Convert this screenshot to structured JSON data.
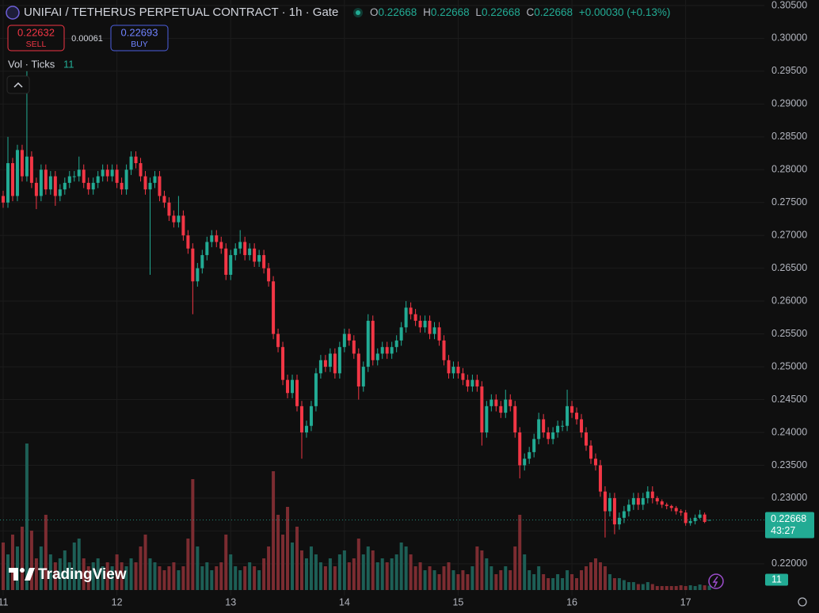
{
  "chart_data": {
    "type": "candlestick",
    "title": "UNIFAI / TETHERUS PERPETUAL CONTRACT · 1h · Gate",
    "x": [
      0,
      1,
      2,
      3,
      4,
      5,
      6,
      7,
      8,
      9,
      10,
      11,
      12,
      13,
      14,
      15,
      16,
      17,
      18,
      19,
      20,
      21,
      22,
      23,
      24,
      25,
      26,
      27,
      28,
      29,
      30,
      31,
      32,
      33,
      34,
      35,
      36,
      37,
      38,
      39,
      40,
      41,
      42,
      43,
      44,
      45,
      46,
      47,
      48,
      49,
      50,
      51,
      52,
      53,
      54,
      55,
      56,
      57,
      58,
      59,
      60,
      61,
      62,
      63,
      64,
      65,
      66,
      67,
      68,
      69,
      70,
      71,
      72,
      73,
      74,
      75,
      76,
      77,
      78,
      79,
      80,
      81,
      82,
      83,
      84,
      85,
      86,
      87,
      88,
      89,
      90,
      91,
      92,
      93,
      94,
      95,
      96,
      97,
      98,
      99,
      100,
      101,
      102,
      103,
      104,
      105,
      106,
      107,
      108,
      109,
      110,
      111,
      112,
      113,
      114,
      115,
      116,
      117,
      118,
      119,
      120,
      121,
      122,
      123,
      124,
      125,
      126,
      127,
      128,
      129,
      130,
      131,
      132,
      133,
      134,
      135,
      136,
      137,
      138,
      139,
      140,
      141,
      142,
      143,
      144,
      145,
      146,
      147,
      148,
      149
    ],
    "open": [
      0.276,
      0.275,
      0.281,
      0.276,
      0.283,
      0.279,
      0.282,
      0.278,
      0.276,
      0.28,
      0.277,
      0.279,
      0.276,
      0.277,
      0.278,
      0.279,
      0.279,
      0.28,
      0.278,
      0.277,
      0.278,
      0.279,
      0.28,
      0.279,
      0.28,
      0.278,
      0.277,
      0.28,
      0.282,
      0.281,
      0.279,
      0.277,
      0.278,
      0.279,
      0.276,
      0.275,
      0.273,
      0.272,
      0.273,
      0.27,
      0.268,
      0.263,
      0.265,
      0.267,
      0.269,
      0.27,
      0.269,
      0.268,
      0.264,
      0.267,
      0.268,
      0.269,
      0.267,
      0.268,
      0.266,
      0.267,
      0.265,
      0.263,
      0.255,
      0.253,
      0.248,
      0.246,
      0.248,
      0.244,
      0.24,
      0.241,
      0.244,
      0.249,
      0.251,
      0.25,
      0.252,
      0.249,
      0.253,
      0.255,
      0.254,
      0.252,
      0.247,
      0.25,
      0.257,
      0.251,
      0.252,
      0.253,
      0.252,
      0.253,
      0.254,
      0.256,
      0.259,
      0.258,
      0.257,
      0.256,
      0.257,
      0.255,
      0.256,
      0.254,
      0.251,
      0.249,
      0.25,
      0.249,
      0.248,
      0.247,
      0.248,
      0.247,
      0.24,
      0.244,
      0.245,
      0.244,
      0.243,
      0.245,
      0.244,
      0.24,
      0.235,
      0.236,
      0.237,
      0.239,
      0.242,
      0.24,
      0.239,
      0.24,
      0.241,
      0.241,
      0.244,
      0.243,
      0.242,
      0.24,
      0.238,
      0.236,
      0.235,
      0.231,
      0.228,
      0.23,
      0.226,
      0.227,
      0.228,
      0.229,
      0.23,
      0.229,
      0.23,
      0.231,
      0.23,
      0.2295,
      0.229,
      0.2288,
      0.2285,
      0.228,
      0.2278,
      0.2262,
      0.2265,
      0.227,
      0.2275,
      0.22668
    ],
    "high": [
      0.2768,
      0.285,
      0.2818,
      0.2838,
      0.2838,
      0.295,
      0.2828,
      0.2788,
      0.2808,
      0.2808,
      0.2798,
      0.2798,
      0.2778,
      0.2788,
      0.2798,
      0.2798,
      0.282,
      0.2808,
      0.2788,
      0.2788,
      0.2798,
      0.2808,
      0.2808,
      0.2808,
      0.2808,
      0.2788,
      0.2808,
      0.2828,
      0.2828,
      0.2818,
      0.2798,
      0.2788,
      0.2798,
      0.2798,
      0.2768,
      0.2758,
      0.2738,
      0.276,
      0.2738,
      0.2708,
      0.2688,
      0.2658,
      0.2678,
      0.2698,
      0.2708,
      0.2708,
      0.2698,
      0.2688,
      0.2678,
      0.2688,
      0.2708,
      0.2698,
      0.2688,
      0.2688,
      0.2678,
      0.2678,
      0.2658,
      0.2638,
      0.2558,
      0.2538,
      0.2488,
      0.2488,
      0.2488,
      0.2448,
      0.2418,
      0.2448,
      0.2498,
      0.2518,
      0.2518,
      0.2528,
      0.2528,
      0.2538,
      0.2558,
      0.2558,
      0.2548,
      0.2528,
      0.2508,
      0.258,
      0.2578,
      0.2528,
      0.2538,
      0.2538,
      0.2538,
      0.2548,
      0.2568,
      0.26,
      0.2598,
      0.2588,
      0.2578,
      0.2578,
      0.2578,
      0.2568,
      0.2568,
      0.2548,
      0.2518,
      0.2508,
      0.2508,
      0.2498,
      0.2488,
      0.2488,
      0.2488,
      0.2478,
      0.2448,
      0.2458,
      0.2458,
      0.2448,
      0.2465,
      0.2458,
      0.2448,
      0.2408,
      0.2368,
      0.2378,
      0.2398,
      0.243,
      0.2428,
      0.2408,
      0.2408,
      0.2418,
      0.2418,
      0.2465,
      0.2448,
      0.2438,
      0.2428,
      0.2408,
      0.2388,
      0.2368,
      0.2358,
      0.2318,
      0.2308,
      0.2308,
      0.2278,
      0.2288,
      0.2298,
      0.2308,
      0.2308,
      0.2308,
      0.2318,
      0.2318,
      0.2303,
      0.2298,
      0.2293,
      0.229,
      0.2288,
      0.2283,
      0.2282,
      0.227,
      0.2275,
      0.2282,
      0.2278,
      0.22668
    ],
    "low": [
      0.2742,
      0.2742,
      0.2752,
      0.2752,
      0.2782,
      0.2782,
      0.2772,
      0.274,
      0.2752,
      0.2762,
      0.2762,
      0.2745,
      0.2752,
      0.2762,
      0.2772,
      0.2782,
      0.2782,
      0.2772,
      0.2762,
      0.2762,
      0.2772,
      0.2782,
      0.2782,
      0.2782,
      0.2772,
      0.2762,
      0.2762,
      0.2792,
      0.2802,
      0.2782,
      0.2762,
      0.264,
      0.2772,
      0.2752,
      0.2742,
      0.2722,
      0.2712,
      0.2712,
      0.2692,
      0.2672,
      0.258,
      0.2622,
      0.2642,
      0.2662,
      0.2682,
      0.2682,
      0.2672,
      0.2632,
      0.2632,
      0.2662,
      0.2672,
      0.2662,
      0.2662,
      0.2652,
      0.2652,
      0.2642,
      0.2622,
      0.2542,
      0.2522,
      0.2472,
      0.2452,
      0.2452,
      0.2432,
      0.236,
      0.2392,
      0.2402,
      0.2432,
      0.2482,
      0.2492,
      0.2492,
      0.2482,
      0.2482,
      0.2522,
      0.2532,
      0.2512,
      0.245,
      0.2462,
      0.2492,
      0.2502,
      0.2502,
      0.2512,
      0.2512,
      0.2512,
      0.2522,
      0.2532,
      0.2552,
      0.2572,
      0.2562,
      0.2552,
      0.2552,
      0.2542,
      0.2542,
      0.2532,
      0.2502,
      0.2482,
      0.2482,
      0.2482,
      0.2472,
      0.2462,
      0.2462,
      0.2462,
      0.238,
      0.2392,
      0.2432,
      0.2432,
      0.2422,
      0.2422,
      0.2432,
      0.2392,
      0.233,
      0.2342,
      0.2352,
      0.2362,
      0.2382,
      0.2392,
      0.2382,
      0.2382,
      0.2392,
      0.2402,
      0.2402,
      0.2422,
      0.2412,
      0.2392,
      0.2372,
      0.2352,
      0.2342,
      0.2302,
      0.224,
      0.2272,
      0.2245,
      0.2252,
      0.2262,
      0.2272,
      0.2282,
      0.2282,
      0.2282,
      0.2292,
      0.2292,
      0.229,
      0.2285,
      0.2283,
      0.228,
      0.2275,
      0.2273,
      0.2258,
      0.2258,
      0.226,
      0.2268,
      0.2262,
      0.22668
    ],
    "close": [
      0.275,
      0.281,
      0.276,
      0.283,
      0.279,
      0.282,
      0.278,
      0.276,
      0.28,
      0.277,
      0.279,
      0.276,
      0.277,
      0.278,
      0.279,
      0.279,
      0.28,
      0.278,
      0.277,
      0.278,
      0.279,
      0.28,
      0.279,
      0.28,
      0.278,
      0.277,
      0.28,
      0.282,
      0.281,
      0.279,
      0.277,
      0.278,
      0.279,
      0.276,
      0.275,
      0.273,
      0.272,
      0.273,
      0.27,
      0.268,
      0.263,
      0.265,
      0.267,
      0.269,
      0.27,
      0.269,
      0.268,
      0.264,
      0.267,
      0.268,
      0.269,
      0.267,
      0.268,
      0.266,
      0.267,
      0.265,
      0.263,
      0.255,
      0.253,
      0.248,
      0.246,
      0.248,
      0.244,
      0.24,
      0.241,
      0.244,
      0.249,
      0.251,
      0.25,
      0.252,
      0.249,
      0.253,
      0.255,
      0.254,
      0.252,
      0.247,
      0.25,
      0.257,
      0.251,
      0.252,
      0.253,
      0.252,
      0.253,
      0.254,
      0.256,
      0.259,
      0.258,
      0.257,
      0.256,
      0.257,
      0.255,
      0.256,
      0.254,
      0.251,
      0.249,
      0.25,
      0.249,
      0.248,
      0.247,
      0.248,
      0.247,
      0.24,
      0.244,
      0.245,
      0.244,
      0.243,
      0.245,
      0.244,
      0.24,
      0.235,
      0.236,
      0.237,
      0.239,
      0.242,
      0.24,
      0.239,
      0.24,
      0.241,
      0.241,
      0.244,
      0.243,
      0.242,
      0.24,
      0.238,
      0.236,
      0.235,
      0.231,
      0.228,
      0.23,
      0.226,
      0.227,
      0.228,
      0.229,
      0.23,
      0.229,
      0.23,
      0.231,
      0.23,
      0.2295,
      0.229,
      0.2288,
      0.2285,
      0.228,
      0.2278,
      0.2262,
      0.2265,
      0.227,
      0.2275,
      0.22638,
      0.22668
    ],
    "volume": [
      120,
      90,
      140,
      110,
      160,
      370,
      150,
      80,
      110,
      190,
      90,
      70,
      80,
      100,
      70,
      120,
      130,
      80,
      60,
      70,
      80,
      60,
      70,
      60,
      90,
      70,
      60,
      80,
      70,
      110,
      140,
      80,
      70,
      60,
      50,
      60,
      70,
      50,
      60,
      130,
      280,
      110,
      60,
      70,
      50,
      60,
      70,
      140,
      90,
      60,
      50,
      60,
      70,
      60,
      50,
      80,
      110,
      300,
      190,
      140,
      210,
      120,
      160,
      100,
      80,
      110,
      90,
      70,
      60,
      80,
      60,
      90,
      100,
      70,
      80,
      130,
      90,
      110,
      100,
      70,
      80,
      70,
      80,
      90,
      120,
      110,
      90,
      60,
      70,
      50,
      60,
      50,
      40,
      60,
      70,
      50,
      40,
      50,
      40,
      60,
      110,
      100,
      80,
      60,
      40,
      50,
      60,
      50,
      110,
      190,
      90,
      50,
      40,
      60,
      40,
      30,
      30,
      40,
      30,
      50,
      40,
      30,
      50,
      60,
      70,
      80,
      70,
      60,
      40,
      30,
      30,
      25,
      20,
      20,
      15,
      15,
      20,
      15,
      10,
      10,
      10,
      10,
      10,
      12,
      10,
      12,
      10,
      14,
      12,
      11
    ],
    "up_color": "#22ab94",
    "down_color": "#f23645",
    "volume_up_color": "#1d5f56",
    "volume_down_color": "#7c2c31",
    "xlim": [
      -0.67,
      160.6
    ],
    "xticks": [
      {
        "value": 0,
        "label": "11"
      },
      {
        "value": 24,
        "label": "12"
      },
      {
        "value": 48,
        "label": "13"
      },
      {
        "value": 72,
        "label": "14"
      },
      {
        "value": 96,
        "label": "15"
      },
      {
        "value": 120,
        "label": "16"
      },
      {
        "value": 144,
        "label": "17"
      }
    ],
    "ylim": [
      0.21516,
      0.30584
    ],
    "yticks": [
      {
        "value": 0.22,
        "label": "0.22000"
      },
      {
        "value": 0.225,
        "label": "0.22500"
      },
      {
        "value": 0.23,
        "label": "0.23000"
      },
      {
        "value": 0.235,
        "label": "0.23500"
      },
      {
        "value": 0.24,
        "label": "0.24000"
      },
      {
        "value": 0.245,
        "label": "0.24500"
      },
      {
        "value": 0.25,
        "label": "0.25000"
      },
      {
        "value": 0.255,
        "label": "0.25500"
      },
      {
        "value": 0.26,
        "label": "0.26000"
      },
      {
        "value": 0.265,
        "label": "0.26500"
      },
      {
        "value": 0.27,
        "label": "0.27000"
      },
      {
        "value": 0.275,
        "label": "0.27500"
      },
      {
        "value": 0.28,
        "label": "0.28000"
      },
      {
        "value": 0.285,
        "label": "0.28500"
      },
      {
        "value": 0.29,
        "label": "0.29000"
      },
      {
        "value": 0.295,
        "label": "0.29500"
      },
      {
        "value": 0.3,
        "label": "0.30000"
      },
      {
        "value": 0.305,
        "label": "0.30500"
      }
    ],
    "volume_ylim": [
      0,
      1400
    ],
    "grid": true,
    "last_price_line": true
  },
  "header": {
    "ohlc_keys": [
      "O",
      "H",
      "L",
      "C"
    ],
    "change": "+0.00030 (+0.13%)",
    "sell_price": "0.22632",
    "sell_label": "SELL",
    "spread": "0.00061",
    "buy_price": "0.22693",
    "buy_label": "BUY",
    "volume_indicator": "Vol · Ticks",
    "countdown": "43:27",
    "brand": "TradingView"
  }
}
